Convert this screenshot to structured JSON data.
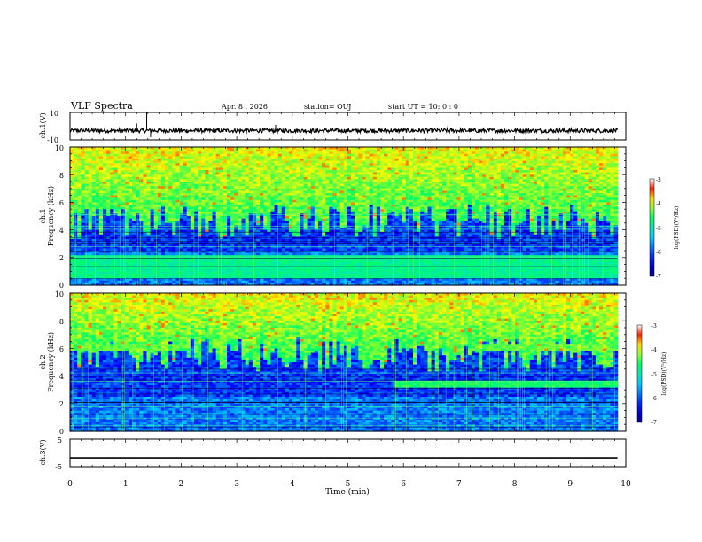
{
  "header": {
    "title": "VLF Spectra",
    "date": "Apr. 8 , 2026",
    "station": "station= OUJ",
    "start": "start UT =  10: 0 : 0"
  },
  "chart_data": [
    {
      "type": "line",
      "name": "ch1-waveform",
      "ylabel": "ch.1(V)",
      "ylim": [
        -10,
        10
      ],
      "ytick_labels": [
        "10",
        "-10"
      ],
      "baseline": -3.2,
      "noise_amplitude": 1.5,
      "spikes": [
        {
          "t": 1.2,
          "v": 2
        },
        {
          "t": 1.38,
          "v": 10
        },
        {
          "t": 1.45,
          "v": -8
        },
        {
          "t": 3.7,
          "v": 1.0
        },
        {
          "t": 6.8,
          "v": 0.8
        }
      ]
    },
    {
      "type": "heatmap",
      "name": "ch1-spectrogram",
      "ylabel": "ch.1",
      "ylabel2": "Frequency (kHz)",
      "ylim": [
        0,
        10
      ],
      "ytick_labels": [
        "0",
        "2",
        "4",
        "6",
        "8",
        "10"
      ],
      "xlim": [
        0,
        10
      ],
      "data_end_min": 9.85,
      "hiss_floor_khz": 5.8,
      "bands_khz": [
        {
          "f0": 0.5,
          "f1": 2.2,
          "level": 0.5
        }
      ],
      "colorbar": {
        "label": "log(PSD)(V²/Hz)",
        "ticks": [
          "-3",
          "-4",
          "-5",
          "-6",
          "-7"
        ],
        "range": [
          -7,
          -3
        ]
      }
    },
    {
      "type": "heatmap",
      "name": "ch2-spectrogram",
      "ylabel": "ch.2",
      "ylabel2": "Frequency (kHz)",
      "ylim": [
        0,
        10
      ],
      "ytick_labels": [
        "0",
        "2",
        "4",
        "6",
        "8",
        "10"
      ],
      "xlim": [
        0,
        10
      ],
      "data_end_min": 9.85,
      "hiss_floor_khz": 6.8,
      "bands_khz": [
        {
          "t0": 0,
          "t1": 2.15,
          "f0": 5.9,
          "f1": 6.4,
          "level": 0.6
        },
        {
          "t0": 7.35,
          "t1": 9.85,
          "f0": 5.8,
          "f1": 6.3,
          "level": 0.6
        },
        {
          "t0": 5.85,
          "t1": 9.85,
          "f0": 3.1,
          "f1": 3.6,
          "level": 0.55
        }
      ],
      "colorbar": {
        "label": "log(PSD)(V²/Hz)",
        "ticks": [
          "-3",
          "-4",
          "-5",
          "-6",
          "-7"
        ],
        "range": [
          -7,
          -3
        ]
      }
    },
    {
      "type": "line",
      "name": "ch3-waveform",
      "ylabel": "ch.3(V)",
      "ylim": [
        -5,
        5
      ],
      "ytick_labels": [
        "5",
        "-5"
      ],
      "values_constant": -1.8
    }
  ],
  "xaxis": {
    "xlabel": "Time (min)",
    "xlim": [
      0,
      10
    ],
    "tick_labels": [
      "0",
      "1",
      "2",
      "3",
      "4",
      "5",
      "6",
      "7",
      "8",
      "9",
      "10"
    ]
  },
  "colors": {
    "colormap": [
      "#000088",
      "#0000ff",
      "#00ccff",
      "#00ff66",
      "#ffff00",
      "#ff0000",
      "#ffffff"
    ]
  }
}
